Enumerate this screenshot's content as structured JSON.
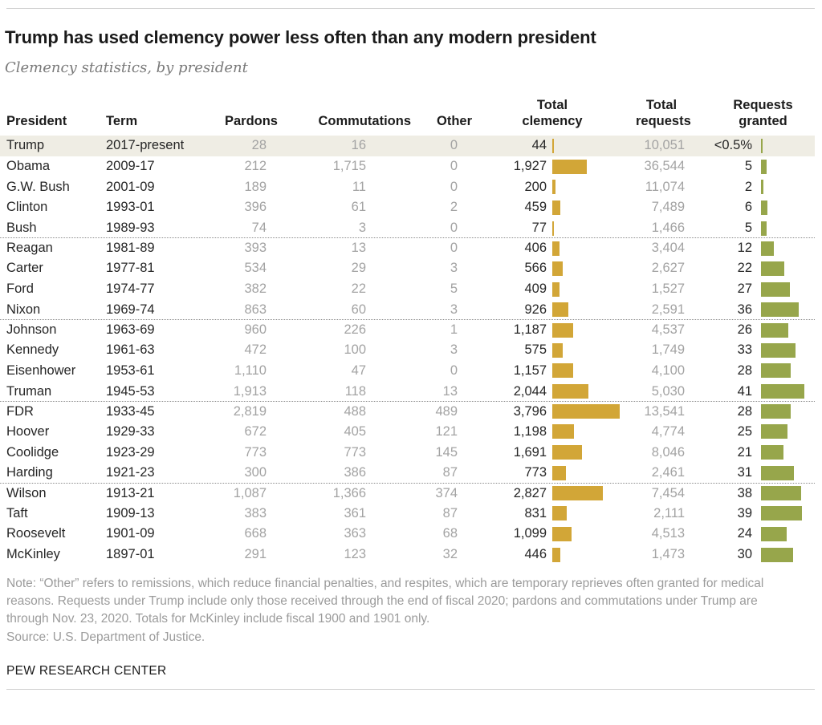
{
  "header": {
    "title": "Trump has used clemency power less often than any modern president",
    "subtitle": "Clemency statistics, by president"
  },
  "table": {
    "headers": {
      "president": "President",
      "term": "Term",
      "pardons": "Pardons",
      "commutations": "Commutations",
      "other": "Other",
      "total_clemency": "Total\nclemency",
      "total_requests": "Total\nrequests",
      "requests_granted": "Requests\ngranted"
    },
    "highlight_row": 0,
    "group_start_rows": [
      5,
      9,
      13,
      17
    ],
    "rows": [
      {
        "president": "Trump",
        "term": "2017-present",
        "pardons": "28",
        "commutations": "16",
        "other": "0",
        "total_clemency": "44",
        "total_requests": "10,051",
        "requests_granted": "<0.5%"
      },
      {
        "president": "Obama",
        "term": "2009-17",
        "pardons": "212",
        "commutations": "1,715",
        "other": "0",
        "total_clemency": "1,927",
        "total_requests": "36,544",
        "requests_granted": "5"
      },
      {
        "president": "G.W. Bush",
        "term": "2001-09",
        "pardons": "189",
        "commutations": "11",
        "other": "0",
        "total_clemency": "200",
        "total_requests": "11,074",
        "requests_granted": "2"
      },
      {
        "president": "Clinton",
        "term": "1993-01",
        "pardons": "396",
        "commutations": "61",
        "other": "2",
        "total_clemency": "459",
        "total_requests": "7,489",
        "requests_granted": "6"
      },
      {
        "president": "Bush",
        "term": "1989-93",
        "pardons": "74",
        "commutations": "3",
        "other": "0",
        "total_clemency": "77",
        "total_requests": "1,466",
        "requests_granted": "5"
      },
      {
        "president": "Reagan",
        "term": "1981-89",
        "pardons": "393",
        "commutations": "13",
        "other": "0",
        "total_clemency": "406",
        "total_requests": "3,404",
        "requests_granted": "12"
      },
      {
        "president": "Carter",
        "term": "1977-81",
        "pardons": "534",
        "commutations": "29",
        "other": "3",
        "total_clemency": "566",
        "total_requests": "2,627",
        "requests_granted": "22"
      },
      {
        "president": "Ford",
        "term": "1974-77",
        "pardons": "382",
        "commutations": "22",
        "other": "5",
        "total_clemency": "409",
        "total_requests": "1,527",
        "requests_granted": "27"
      },
      {
        "president": "Nixon",
        "term": "1969-74",
        "pardons": "863",
        "commutations": "60",
        "other": "3",
        "total_clemency": "926",
        "total_requests": "2,591",
        "requests_granted": "36"
      },
      {
        "president": "Johnson",
        "term": "1963-69",
        "pardons": "960",
        "commutations": "226",
        "other": "1",
        "total_clemency": "1,187",
        "total_requests": "4,537",
        "requests_granted": "26"
      },
      {
        "president": "Kennedy",
        "term": "1961-63",
        "pardons": "472",
        "commutations": "100",
        "other": "3",
        "total_clemency": "575",
        "total_requests": "1,749",
        "requests_granted": "33"
      },
      {
        "president": "Eisenhower",
        "term": "1953-61",
        "pardons": "1,110",
        "commutations": "47",
        "other": "0",
        "total_clemency": "1,157",
        "total_requests": "4,100",
        "requests_granted": "28"
      },
      {
        "president": "Truman",
        "term": "1945-53",
        "pardons": "1,913",
        "commutations": "118",
        "other": "13",
        "total_clemency": "2,044",
        "total_requests": "5,030",
        "requests_granted": "41"
      },
      {
        "president": "FDR",
        "term": "1933-45",
        "pardons": "2,819",
        "commutations": "488",
        "other": "489",
        "total_clemency": "3,796",
        "total_requests": "13,541",
        "requests_granted": "28"
      },
      {
        "president": "Hoover",
        "term": "1929-33",
        "pardons": "672",
        "commutations": "405",
        "other": "121",
        "total_clemency": "1,198",
        "total_requests": "4,774",
        "requests_granted": "25"
      },
      {
        "president": "Coolidge",
        "term": "1923-29",
        "pardons": "773",
        "commutations": "773",
        "other": "145",
        "total_clemency": "1,691",
        "total_requests": "8,046",
        "requests_granted": "21"
      },
      {
        "president": "Harding",
        "term": "1921-23",
        "pardons": "300",
        "commutations": "386",
        "other": "87",
        "total_clemency": "773",
        "total_requests": "2,461",
        "requests_granted": "31"
      },
      {
        "president": "Wilson",
        "term": "1913-21",
        "pardons": "1,087",
        "commutations": "1,366",
        "other": "374",
        "total_clemency": "2,827",
        "total_requests": "7,454",
        "requests_granted": "38"
      },
      {
        "president": "Taft",
        "term": "1909-13",
        "pardons": "383",
        "commutations": "361",
        "other": "87",
        "total_clemency": "831",
        "total_requests": "2,111",
        "requests_granted": "39"
      },
      {
        "president": "Roosevelt",
        "term": "1901-09",
        "pardons": "668",
        "commutations": "363",
        "other": "68",
        "total_clemency": "1,099",
        "total_requests": "4,513",
        "requests_granted": "24"
      },
      {
        "president": "McKinley",
        "term": "1897-01",
        "pardons": "291",
        "commutations": "123",
        "other": "32",
        "total_clemency": "446",
        "total_requests": "1,473",
        "requests_granted": "30"
      }
    ]
  },
  "chart_data": {
    "type": "bar",
    "orientation": "horizontal",
    "title": "Trump has used clemency power less often than any modern president",
    "subtitle": "Clemency statistics, by president",
    "categories": [
      "Trump",
      "Obama",
      "G.W. Bush",
      "Clinton",
      "Bush",
      "Reagan",
      "Carter",
      "Ford",
      "Nixon",
      "Johnson",
      "Kennedy",
      "Eisenhower",
      "Truman",
      "FDR",
      "Hoover",
      "Coolidge",
      "Harding",
      "Wilson",
      "Taft",
      "Roosevelt",
      "McKinley"
    ],
    "series": [
      {
        "name": "Pardons",
        "values": [
          28,
          212,
          189,
          396,
          74,
          393,
          534,
          382,
          863,
          960,
          472,
          1110,
          1913,
          2819,
          672,
          773,
          300,
          1087,
          383,
          668,
          291
        ]
      },
      {
        "name": "Commutations",
        "values": [
          16,
          1715,
          11,
          61,
          3,
          13,
          29,
          22,
          60,
          226,
          100,
          47,
          118,
          488,
          405,
          773,
          386,
          1366,
          361,
          363,
          123
        ]
      },
      {
        "name": "Other",
        "values": [
          0,
          0,
          0,
          2,
          0,
          0,
          3,
          5,
          3,
          1,
          3,
          0,
          13,
          489,
          121,
          145,
          87,
          374,
          87,
          68,
          32
        ]
      },
      {
        "name": "Total clemency",
        "values": [
          44,
          1927,
          200,
          459,
          77,
          406,
          566,
          409,
          926,
          1187,
          575,
          1157,
          2044,
          3796,
          1198,
          1691,
          773,
          2827,
          831,
          1099,
          446
        ],
        "color": "#d2a637",
        "bar": true
      },
      {
        "name": "Total requests",
        "values": [
          10051,
          36544,
          11074,
          7489,
          1466,
          3404,
          2627,
          1527,
          2591,
          4537,
          1749,
          4100,
          5030,
          13541,
          4774,
          8046,
          2461,
          7454,
          2111,
          4513,
          1473
        ]
      },
      {
        "name": "Requests granted (%)",
        "values": [
          0.5,
          5,
          2,
          6,
          5,
          12,
          22,
          27,
          36,
          26,
          33,
          28,
          41,
          28,
          25,
          21,
          31,
          38,
          39,
          24,
          30
        ],
        "color": "#97a64b",
        "bar": true
      }
    ],
    "legend": false,
    "grid": false
  },
  "colors": {
    "clemency_bar": "#d2a637",
    "granted_bar": "#97a64b",
    "highlight_bg": "#efede4"
  },
  "footer": {
    "note": "Note: “Other” refers to remissions, which reduce financial penalties, and respites, which are temporary reprieves often granted for medical reasons. Requests under Trump include only those received through the end of fiscal 2020; pardons and commutations under Trump are through Nov. 23, 2020. Totals for McKinley include fiscal 1900 and 1901 only.",
    "source": "Source: U.S. Department of Justice.",
    "brand": "PEW RESEARCH CENTER"
  }
}
